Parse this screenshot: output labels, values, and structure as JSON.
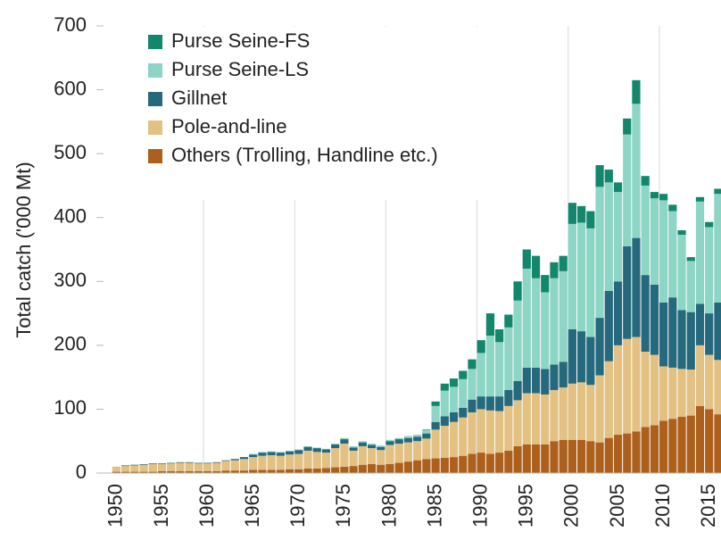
{
  "chart_data": {
    "type": "bar",
    "stacked": true,
    "y_label": "Total catch ('000 Mt)",
    "categories": [
      "1950",
      null,
      null,
      null,
      null,
      "1955",
      null,
      null,
      null,
      null,
      "1960",
      null,
      null,
      null,
      null,
      "1965",
      null,
      null,
      null,
      null,
      "1970",
      null,
      null,
      null,
      null,
      "1975",
      null,
      null,
      null,
      null,
      "1980",
      null,
      null,
      null,
      null,
      "1985",
      null,
      null,
      null,
      null,
      "1990",
      null,
      null,
      null,
      null,
      "1995",
      null,
      null,
      null,
      null,
      "2000",
      null,
      null,
      null,
      null,
      "2005",
      null,
      null,
      null,
      null,
      "2010",
      null,
      null,
      null,
      null,
      "2015",
      null,
      null
    ],
    "ylim": [
      0,
      700
    ],
    "yticks": [
      0,
      100,
      200,
      300,
      400,
      500,
      600,
      700
    ],
    "grid": true,
    "legend": "upper left",
    "series": [
      {
        "name": "Purse Seine-FS",
        "color": "#12876c",
        "values": [
          0,
          0,
          0,
          0,
          0,
          0,
          0,
          0,
          0,
          0,
          0,
          0,
          0,
          0,
          0,
          0,
          0,
          0,
          0,
          0,
          0,
          0,
          0,
          0,
          0,
          0,
          0,
          0,
          0,
          0,
          0,
          0,
          0,
          0,
          1,
          7,
          11,
          13,
          13,
          15,
          20,
          35,
          20,
          20,
          30,
          30,
          35,
          27,
          25,
          24,
          33,
          26,
          27,
          34,
          20,
          15,
          25,
          37,
          15,
          10,
          10,
          10,
          7,
          6,
          7,
          8,
          8,
          10
        ]
      },
      {
        "name": "Purse Seine-LS",
        "color": "#8dd5c4",
        "values": [
          0,
          0,
          0,
          0,
          0,
          0,
          0,
          0,
          0,
          0,
          0,
          0,
          0,
          0,
          0,
          1,
          1,
          1,
          1,
          1,
          1,
          1,
          1,
          1,
          1,
          2,
          2,
          2,
          2,
          2,
          2,
          2,
          3,
          3,
          5,
          25,
          40,
          40,
          45,
          48,
          68,
          95,
          85,
          98,
          126,
          155,
          140,
          120,
          135,
          142,
          165,
          170,
          170,
          205,
          170,
          140,
          175,
          210,
          140,
          135,
          160,
          135,
          118,
          80,
          160,
          135,
          170,
          175
        ]
      },
      {
        "name": "Gillnet",
        "color": "#26697c",
        "values": [
          0,
          1,
          1,
          1,
          1,
          1,
          1,
          1,
          1,
          1,
          1,
          1,
          1,
          2,
          3,
          4,
          5,
          5,
          5,
          5,
          6,
          6,
          6,
          5,
          6,
          7,
          5,
          6,
          5,
          5,
          6,
          7,
          7,
          7,
          8,
          12,
          15,
          15,
          15,
          20,
          20,
          22,
          23,
          25,
          30,
          40,
          40,
          40,
          40,
          40,
          85,
          80,
          75,
          90,
          110,
          100,
          145,
          155,
          120,
          110,
          100,
          110,
          92,
          90,
          65,
          65,
          90,
          80
        ]
      },
      {
        "name": "Pole-and-line",
        "color": "#e2c183",
        "values": [
          8,
          9,
          10,
          11,
          12,
          11,
          12,
          13,
          13,
          12,
          12,
          13,
          15,
          16,
          18,
          20,
          22,
          23,
          22,
          23,
          24,
          28,
          26,
          24,
          30,
          36,
          24,
          29,
          25,
          23,
          30,
          30,
          30,
          30,
          32,
          45,
          50,
          55,
          60,
          65,
          68,
          68,
          65,
          70,
          72,
          80,
          80,
          78,
          80,
          82,
          88,
          90,
          88,
          105,
          120,
          140,
          148,
          148,
          118,
          110,
          85,
          80,
          75,
          72,
          95,
          85,
          85,
          85
        ]
      },
      {
        "name": "Others (Trolling, Handline etc.)",
        "color": "#ad5f1c",
        "values": [
          2,
          2,
          2,
          2,
          2,
          3,
          3,
          3,
          3,
          3,
          3,
          3,
          4,
          4,
          4,
          5,
          5,
          5,
          5,
          6,
          6,
          7,
          7,
          8,
          9,
          10,
          11,
          13,
          14,
          13,
          14,
          16,
          18,
          20,
          22,
          23,
          24,
          25,
          27,
          30,
          32,
          30,
          32,
          35,
          42,
          45,
          45,
          45,
          50,
          52,
          52,
          52,
          50,
          48,
          55,
          60,
          62,
          65,
          72,
          75,
          82,
          85,
          88,
          90,
          105,
          100,
          92,
          90
        ]
      }
    ]
  }
}
